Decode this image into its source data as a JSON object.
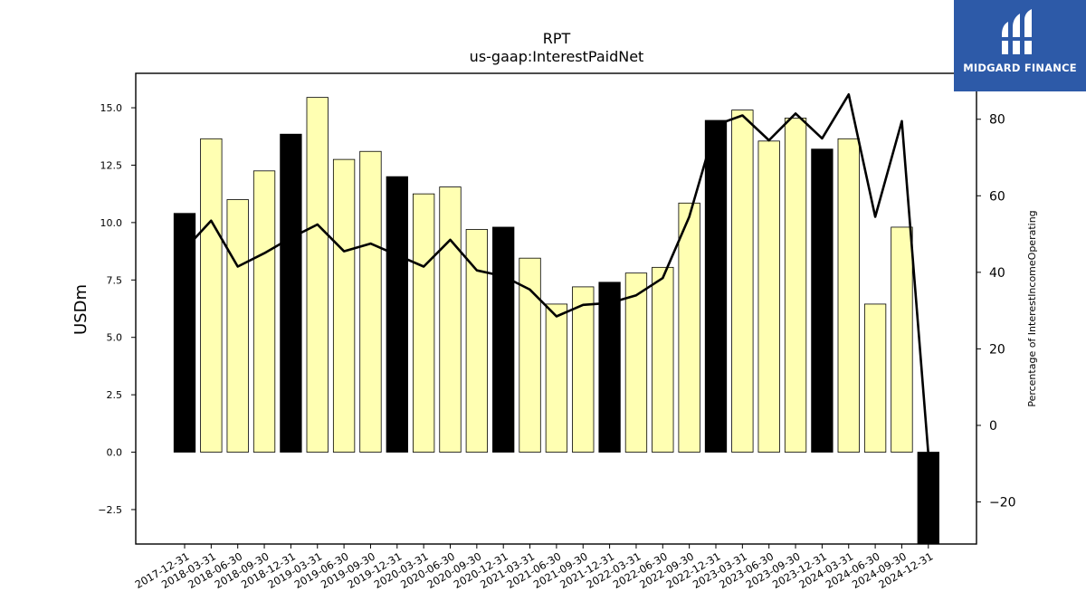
{
  "chart_data": {
    "type": "bar",
    "title": "RPT",
    "subtitle": "us-gaap:InterestPaidNet",
    "ylabel": "USDm",
    "y2label": "Percentage of InterestIncomeOperating",
    "ylim": [
      -4.0,
      16.5
    ],
    "y2lim": [
      -31.0,
      92.0
    ],
    "yticks": [
      -2.5,
      0.0,
      2.5,
      5.0,
      7.5,
      10.0,
      12.5,
      15.0
    ],
    "y2ticks": [
      -20,
      0,
      20,
      40,
      60,
      80
    ],
    "categories": [
      "2017-12-31",
      "2018-03-31",
      "2018-06-30",
      "2018-09-30",
      "2018-12-31",
      "2019-03-31",
      "2019-06-30",
      "2019-09-30",
      "2019-12-31",
      "2020-03-31",
      "2020-06-30",
      "2020-09-30",
      "2020-12-31",
      "2021-03-31",
      "2021-06-30",
      "2021-09-30",
      "2021-12-31",
      "2022-03-31",
      "2022-06-30",
      "2022-09-30",
      "2022-12-31",
      "2023-03-31",
      "2023-06-30",
      "2023-09-30",
      "2023-12-31",
      "2024-03-31",
      "2024-06-30",
      "2024-09-30",
      "2024-12-31"
    ],
    "series": [
      {
        "kind": "bar",
        "axis": "left",
        "values": [
          10.4,
          13.65,
          11.0,
          12.25,
          13.85,
          15.45,
          12.75,
          13.1,
          12.0,
          11.25,
          11.55,
          9.7,
          9.8,
          8.45,
          6.45,
          7.2,
          7.4,
          7.8,
          8.05,
          10.85,
          14.45,
          14.9,
          13.55,
          14.55,
          13.2,
          13.65,
          6.45,
          9.8,
          -4.0
        ],
        "colors": [
          "#000000",
          "#ffffb2",
          "#ffffb2",
          "#ffffb2",
          "#000000",
          "#ffffb2",
          "#ffffb2",
          "#ffffb2",
          "#000000",
          "#ffffb2",
          "#ffffb2",
          "#ffffb2",
          "#000000",
          "#ffffb2",
          "#ffffb2",
          "#ffffb2",
          "#000000",
          "#ffffb2",
          "#ffffb2",
          "#ffffb2",
          "#000000",
          "#ffffb2",
          "#ffffb2",
          "#ffffb2",
          "#000000",
          "#ffffb2",
          "#ffffb2",
          "#ffffb2",
          "#000000"
        ]
      },
      {
        "kind": "line",
        "axis": "right",
        "color": "#000000",
        "values": [
          46.0,
          53.5,
          41.5,
          45.0,
          49.0,
          52.5,
          45.5,
          47.5,
          44.5,
          41.5,
          48.5,
          40.5,
          39.0,
          35.5,
          28.5,
          31.5,
          32.0,
          34.0,
          38.5,
          54.5,
          78.5,
          81.0,
          74.5,
          81.5,
          75.0,
          86.5,
          54.5,
          79.5,
          -7.5
        ]
      }
    ],
    "grid": false
  },
  "logo": {
    "text": "MIDGARD FINANCE"
  }
}
